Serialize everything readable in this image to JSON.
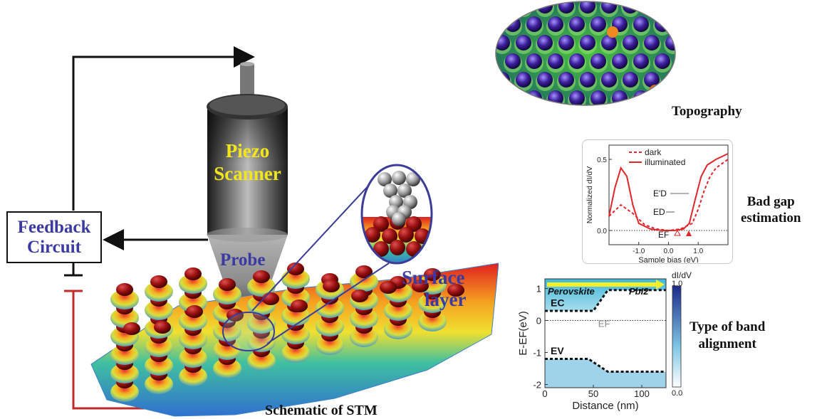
{
  "stm": {
    "feedback_line1": "Feedback",
    "feedback_line2": "Circuit",
    "piezo_line1": "Piezo",
    "piezo_line2": "Scanner",
    "probe": "Probe",
    "surface_line1": "Surface",
    "surface_line2": "layer",
    "caption": "Schematic of STM"
  },
  "topography": {
    "caption": "Topography"
  },
  "didv": {
    "caption_line1": "Bad gap",
    "caption_line2": "estimation",
    "ylabel": "Normalized dI/dV",
    "xlabel": "Sample bias (eV)",
    "yticks": [
      "0.5",
      "0.0"
    ],
    "xticks": [
      "-1.0",
      "0.0",
      "1.0"
    ],
    "legend": [
      "dark",
      "illuminated"
    ],
    "annot_ed_prime": "E'D",
    "annot_ed": "ED",
    "annot_ef": "EF"
  },
  "band": {
    "caption_line1": "Type of band",
    "caption_line2": "alignment",
    "ylabel": "E-EF(eV)",
    "xlabel": "Distance (nm)",
    "yticks": [
      "1",
      "0",
      "-1",
      "-2"
    ],
    "xticks": [
      "0",
      "50",
      "100"
    ],
    "label_left": "Perovskite",
    "label_right": "PbI2",
    "ec": "EC",
    "ev": "EV",
    "ef": "EF",
    "colorbar_title": "dI/dV",
    "colorbar_max": "1.0",
    "colorbar_min": "0.0"
  },
  "colors": {
    "feedback_text": "#3a3aa2",
    "piezo_text": "#f2e61a",
    "loop_red": "#c0282a",
    "didv_red": "#e0262b"
  },
  "chart_data": [
    {
      "type": "line",
      "xlabel": "Sample bias (eV)",
      "ylabel": "Normalized dI/dV",
      "xlim": [
        -2.0,
        2.0
      ],
      "ylim": [
        -0.1,
        0.6
      ],
      "series": [
        {
          "name": "dark",
          "x": [
            -2.0,
            -1.6,
            -1.2,
            -0.8,
            -0.4,
            0.0,
            0.4,
            0.8,
            1.0,
            1.2,
            1.4,
            1.6,
            1.8,
            2.0
          ],
          "values": [
            0.1,
            0.18,
            0.12,
            0.04,
            0.01,
            0.0,
            0.01,
            0.05,
            0.15,
            0.28,
            0.38,
            0.44,
            0.47,
            0.5
          ]
        },
        {
          "name": "illuminated",
          "x": [
            -2.0,
            -1.8,
            -1.6,
            -1.4,
            -1.2,
            -1.0,
            -0.6,
            -0.2,
            0.2,
            0.5,
            0.7,
            0.9,
            1.1,
            1.3,
            1.6,
            1.8,
            2.0
          ],
          "values": [
            0.1,
            0.3,
            0.44,
            0.38,
            0.18,
            0.05,
            0.01,
            0.0,
            0.0,
            0.01,
            0.05,
            0.22,
            0.38,
            0.46,
            0.5,
            0.52,
            0.54
          ]
        }
      ]
    },
    {
      "type": "heatmap",
      "xlabel": "Distance (nm)",
      "ylabel": "E-EF(eV)",
      "xlim": [
        0,
        125
      ],
      "ylim": [
        -2.1,
        1.3
      ],
      "series": [
        {
          "name": "EC",
          "x": [
            0,
            50,
            65,
            125
          ],
          "values": [
            0.3,
            0.3,
            0.95,
            0.95
          ]
        },
        {
          "name": "EV",
          "x": [
            0,
            45,
            65,
            125
          ],
          "values": [
            -1.2,
            -1.2,
            -1.6,
            -1.6
          ]
        }
      ]
    }
  ]
}
